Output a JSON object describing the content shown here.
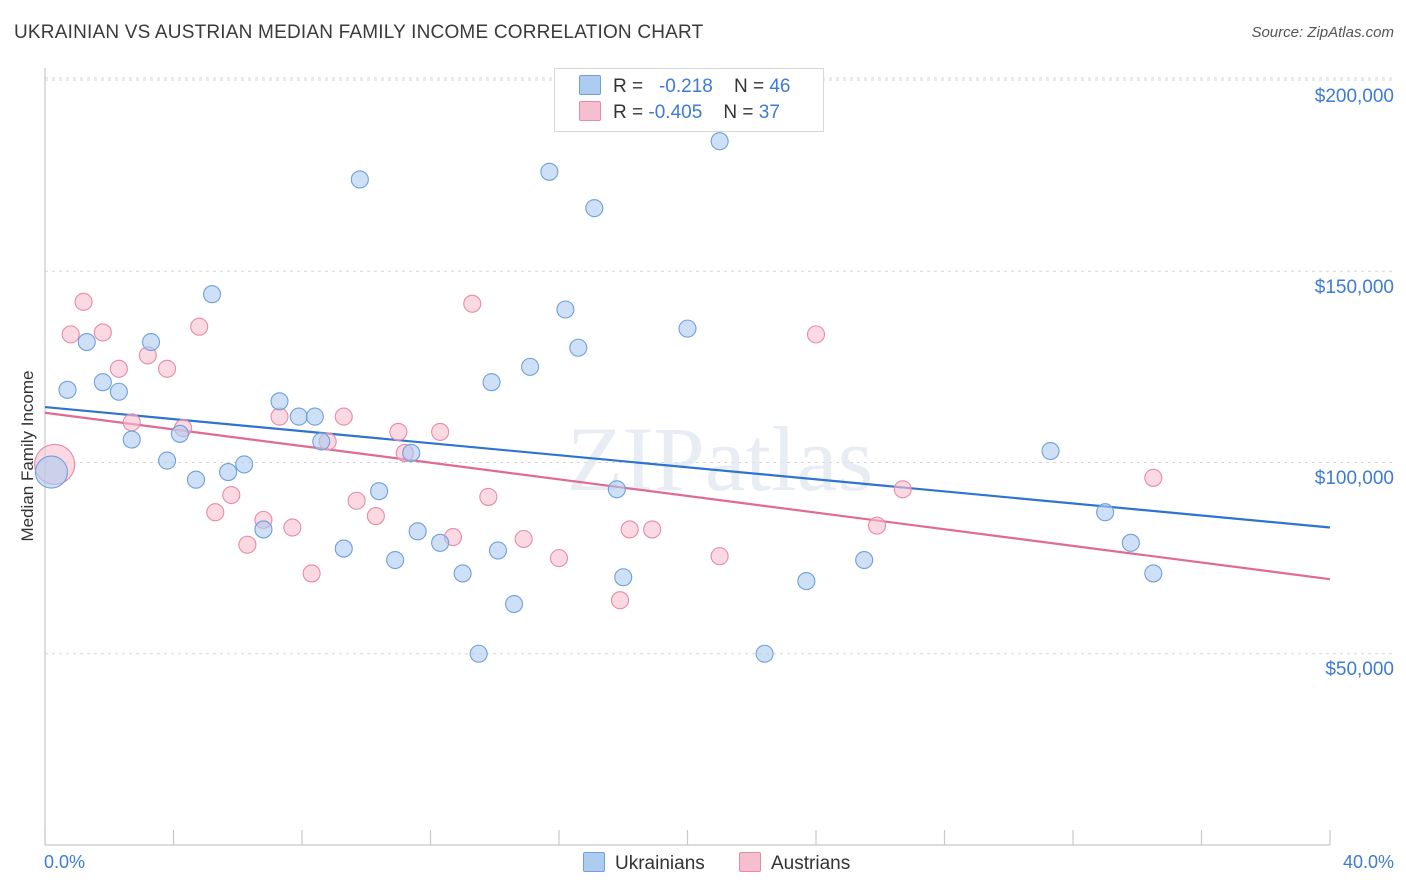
{
  "title": "UKRAINIAN VS AUSTRIAN MEDIAN FAMILY INCOME CORRELATION CHART",
  "source": "Source: ZipAtlas.com",
  "legend_top": [
    {
      "r_label": "R =",
      "r_value": "-0.218",
      "n_label": "N =",
      "n_value": "46"
    },
    {
      "r_label": "R =",
      "r_value": "-0.405",
      "n_label": "N =",
      "n_value": "37"
    }
  ],
  "legend_bottom": [
    "Ukrainians",
    "Austrians"
  ],
  "colors": {
    "ukrainians_fill": "#aecbf0",
    "ukrainians_stroke": "#6f9fdc",
    "ukrainians_line": "#2f73d0",
    "austrians_fill": "#f6bfd0",
    "austrians_stroke": "#e88aa8",
    "austrians_line": "#e06a92",
    "tick_text": "#3d7bd4",
    "grid": "#d6d6d6"
  },
  "watermark": "ZIPatlas",
  "chart_data": {
    "type": "scatter",
    "title": "UKRAINIAN VS AUSTRIAN MEDIAN FAMILY INCOME CORRELATION CHART",
    "xlabel": "",
    "ylabel": "Median Family Income",
    "xlim": [
      0,
      40
    ],
    "ylim": [
      0,
      210000
    ],
    "x_tick_labels": [
      "0.0%",
      "40.0%"
    ],
    "y_ticks": [
      50000,
      100000,
      150000,
      200000
    ],
    "y_tick_labels": [
      "$50,000",
      "$100,000",
      "$150,000",
      "$200,000"
    ],
    "grid": true,
    "legend_position": "top-center",
    "series": [
      {
        "name": "Ukrainians",
        "r": -0.218,
        "n": 46,
        "trend": {
          "x": [
            0,
            40
          ],
          "y": [
            114500,
            83000
          ]
        },
        "points": [
          [
            0.2,
            97500
          ],
          [
            0.7,
            119000
          ],
          [
            1.3,
            131500
          ],
          [
            1.8,
            121000
          ],
          [
            2.3,
            118500
          ],
          [
            2.7,
            106000
          ],
          [
            3.3,
            131500
          ],
          [
            3.8,
            100500
          ],
          [
            4.2,
            107500
          ],
          [
            4.7,
            95500
          ],
          [
            5.2,
            144000
          ],
          [
            5.7,
            97500
          ],
          [
            6.2,
            99500
          ],
          [
            6.8,
            82500
          ],
          [
            7.3,
            116000
          ],
          [
            7.9,
            112000
          ],
          [
            8.4,
            112000
          ],
          [
            8.6,
            105500
          ],
          [
            9.3,
            77500
          ],
          [
            9.8,
            174000
          ],
          [
            10.4,
            92500
          ],
          [
            10.9,
            74500
          ],
          [
            11.4,
            102500
          ],
          [
            11.6,
            82000
          ],
          [
            12.3,
            79000
          ],
          [
            13.0,
            71000
          ],
          [
            13.5,
            50000
          ],
          [
            13.9,
            121000
          ],
          [
            14.1,
            77000
          ],
          [
            14.6,
            63000
          ],
          [
            15.1,
            125000
          ],
          [
            15.7,
            176000
          ],
          [
            16.2,
            140000
          ],
          [
            16.6,
            130000
          ],
          [
            17.1,
            166500
          ],
          [
            17.8,
            93000
          ],
          [
            18.0,
            70000
          ],
          [
            20.0,
            135000
          ],
          [
            21.0,
            184000
          ],
          [
            22.4,
            50000
          ],
          [
            23.7,
            69000
          ],
          [
            25.5,
            74500
          ],
          [
            31.3,
            103000
          ],
          [
            33.0,
            87000
          ],
          [
            33.8,
            79000
          ],
          [
            34.5,
            71000
          ]
        ]
      },
      {
        "name": "Austrians",
        "r": -0.405,
        "n": 37,
        "trend": {
          "x": [
            0,
            40
          ],
          "y": [
            113000,
            69500
          ]
        },
        "points": [
          [
            0.3,
            99500
          ],
          [
            0.8,
            133500
          ],
          [
            1.2,
            142000
          ],
          [
            1.8,
            134000
          ],
          [
            2.3,
            124500
          ],
          [
            2.7,
            110500
          ],
          [
            3.2,
            128000
          ],
          [
            3.8,
            124500
          ],
          [
            4.3,
            109000
          ],
          [
            4.8,
            135500
          ],
          [
            5.3,
            87000
          ],
          [
            5.8,
            91500
          ],
          [
            6.3,
            78500
          ],
          [
            6.8,
            85000
          ],
          [
            7.3,
            112000
          ],
          [
            7.7,
            83000
          ],
          [
            8.3,
            71000
          ],
          [
            8.8,
            105500
          ],
          [
            9.3,
            112000
          ],
          [
            9.7,
            90000
          ],
          [
            10.3,
            86000
          ],
          [
            11.0,
            108000
          ],
          [
            11.2,
            102500
          ],
          [
            12.3,
            108000
          ],
          [
            12.7,
            80500
          ],
          [
            13.3,
            141500
          ],
          [
            13.8,
            91000
          ],
          [
            14.9,
            80000
          ],
          [
            16.0,
            75000
          ],
          [
            17.9,
            64000
          ],
          [
            18.2,
            82500
          ],
          [
            18.9,
            82500
          ],
          [
            21.0,
            75500
          ],
          [
            24.0,
            133500
          ],
          [
            25.9,
            83500
          ],
          [
            26.7,
            93000
          ],
          [
            34.5,
            96000
          ]
        ]
      }
    ]
  }
}
